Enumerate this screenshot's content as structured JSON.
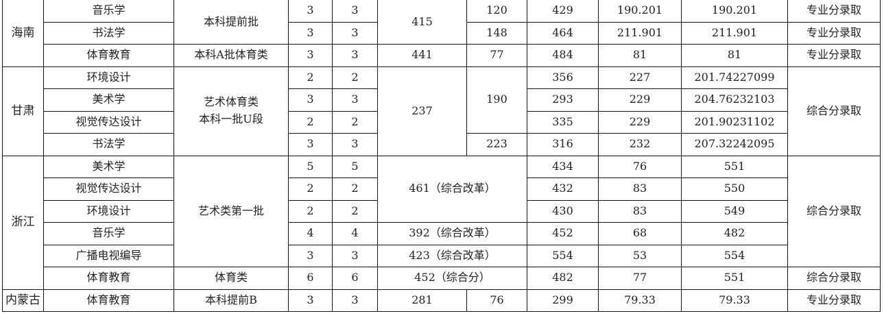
{
  "table": {
    "rows": [
      [
        "海南",
        "音乐学",
        "本科提前批",
        "3",
        "3",
        "415",
        "120",
        "429",
        "190.201",
        "190.201",
        "专业分录取"
      ],
      [
        "书法学",
        "3",
        "3",
        "148",
        "464",
        "211.901",
        "211.901",
        "专业分录取"
      ],
      [
        "体育教育",
        "本科A批体育类",
        "3",
        "3",
        "441",
        "77",
        "484",
        "81",
        "81",
        "专业分录取"
      ],
      [
        "甘肃",
        "环境设计",
        "艺术体育类\n本科一批U段",
        "2",
        "2",
        "237",
        "190",
        "356",
        "227",
        "201.74227099",
        "综合分录取"
      ],
      [
        "美术学",
        "3",
        "3",
        "293",
        "229",
        "204.76232103"
      ],
      [
        "视觉传达设计",
        "2",
        "2",
        "335",
        "229",
        "201.90231102"
      ],
      [
        "书法学",
        "3",
        "3",
        "223",
        "316",
        "232",
        "207.32242095"
      ],
      [
        "浙江",
        "美术学",
        "艺术类第一批",
        "5",
        "5",
        "461（综合改革）",
        "434",
        "76",
        "551",
        "综合分录取"
      ],
      [
        "视觉传达设计",
        "2",
        "2",
        "432",
        "83",
        "550"
      ],
      [
        "环境设计",
        "2",
        "2",
        "430",
        "83",
        "549"
      ],
      [
        "音乐学",
        "4",
        "4",
        "392（综合改革）",
        "452",
        "68",
        "482"
      ],
      [
        "广播电视编导",
        "3",
        "3",
        "423（综合改革）",
        "554",
        "53",
        "554"
      ],
      [
        "体育教育",
        "体育类",
        "6",
        "6",
        "452（综合分）",
        "482",
        "77",
        "551",
        "综合分录取"
      ],
      [
        "内蒙古",
        "体育教育",
        "本科提前B",
        "3",
        "3",
        "281",
        "76",
        "299",
        "79.33",
        "79.33",
        "专业分录取"
      ]
    ]
  }
}
